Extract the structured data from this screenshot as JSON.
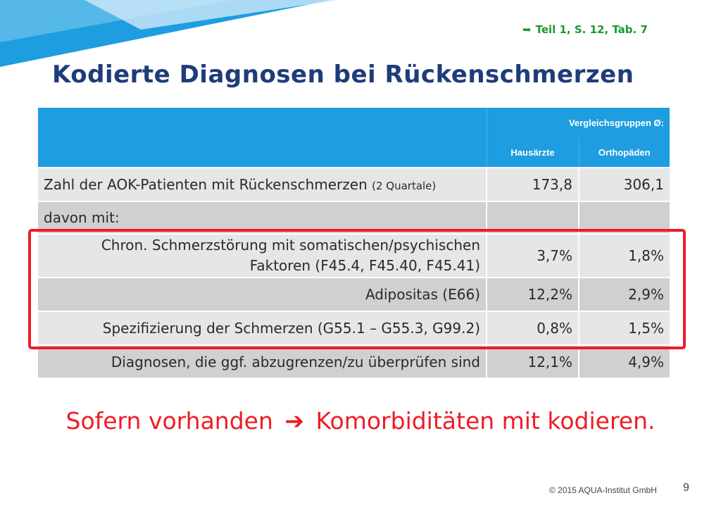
{
  "reference": {
    "arrow_icon": "curved-arrow-right-icon",
    "text": "Teil  1, S. 12, Tab. 7"
  },
  "title": "Kodierte Diagnosen bei Rückenschmerzen",
  "table": {
    "group_header": "Vergleichsgruppen Ø:",
    "columns": [
      "Hausärzte",
      "Orthopäden"
    ],
    "rows": [
      {
        "label": "Zahl der AOK-Patienten mit Rückenschmerzen",
        "label_note": "(2 Quartale)",
        "hausaerzte": "173,8",
        "orthopaeden": "306,1"
      },
      {
        "label": "davon mit:",
        "hausaerzte": "",
        "orthopaeden": ""
      },
      {
        "label_line1": "Chron. Schmerzstörung mit somatischen/psychischen",
        "label_line2": "Faktoren (F45.4, F45.40, F45.41)",
        "hausaerzte": "3,7%",
        "orthopaeden": "1,8%"
      },
      {
        "label": "Adipositas (E66)",
        "hausaerzte": "12,2%",
        "orthopaeden": "2,9%"
      },
      {
        "label": "Spezifizierung der Schmerzen (G55.1 – G55.3, G99.2)",
        "hausaerzte": "0,8%",
        "orthopaeden": "1,5%"
      },
      {
        "label": "Diagnosen, die ggf. abzugrenzen/zu überprüfen sind",
        "hausaerzte": "12,1%",
        "orthopaeden": "4,9%"
      }
    ]
  },
  "callout": {
    "part1": "Sofern vorhanden",
    "arrow": "➔",
    "part2": "Komorbiditäten mit kodieren."
  },
  "footer": {
    "copyright": "© 2015 AQUA-Institut GmbH",
    "page": "9"
  },
  "colors": {
    "header_blue": "#1e9de0",
    "title_blue": "#1f3c79",
    "accent_red": "#ee1c25",
    "reference_green": "#1a9a2e"
  }
}
